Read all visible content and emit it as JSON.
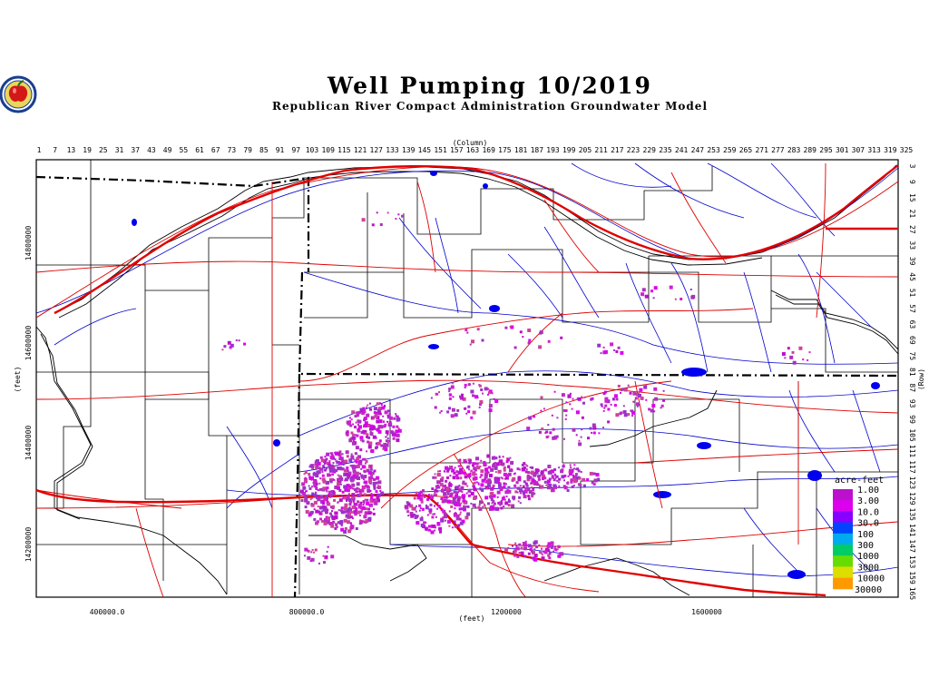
{
  "header": {
    "title": "Well Pumping 10/2019",
    "subtitle": "Republican River Compact Administration Groundwater Model",
    "logo_icon": "apple-logo-icon"
  },
  "axes": {
    "column_label": "(Column)",
    "row_label": "(Row)",
    "x_unit_label": "(feet)",
    "y_unit_label": "(feet)",
    "columns": [
      "1",
      "7",
      "13",
      "19",
      "25",
      "31",
      "37",
      "43",
      "49",
      "55",
      "61",
      "67",
      "73",
      "79",
      "85",
      "91",
      "97",
      "103",
      "109",
      "115",
      "121",
      "127",
      "133",
      "139",
      "145",
      "151",
      "157",
      "163",
      "169",
      "175",
      "181",
      "187",
      "193",
      "199",
      "205",
      "211",
      "217",
      "223",
      "229",
      "235",
      "241",
      "247",
      "253",
      "259",
      "265",
      "271",
      "277",
      "283",
      "289",
      "295",
      "301",
      "307",
      "313",
      "319",
      "325"
    ],
    "rows": [
      "3",
      "9",
      "15",
      "21",
      "27",
      "33",
      "39",
      "45",
      "51",
      "57",
      "63",
      "69",
      "75",
      "81",
      "87",
      "93",
      "99",
      "105",
      "111",
      "117",
      "123",
      "129",
      "135",
      "141",
      "147",
      "153",
      "159",
      "165"
    ],
    "x_ticks": [
      "400000.0",
      "800000.0",
      "1200000",
      "1600000"
    ],
    "y_ticks": [
      "14800000",
      "14600000",
      "14400000",
      "14200000"
    ]
  },
  "legend": {
    "title": "acre-feet",
    "labels": [
      "1.00",
      "3.00",
      "10.0",
      "30.0",
      "100",
      "300",
      "1000",
      "3000",
      "10000",
      "30000"
    ],
    "colors": [
      "#bb11cc",
      "#dd00ee",
      "#8800ff",
      "#0044ff",
      "#00aaee",
      "#00cc66",
      "#66dd00",
      "#dddd00",
      "#ff9900",
      "#ff2200"
    ]
  },
  "map_colors": {
    "rivers": "#0000cc",
    "roads": "#dd0000",
    "boundary": "#000000",
    "pumping": "#cc22cc"
  }
}
